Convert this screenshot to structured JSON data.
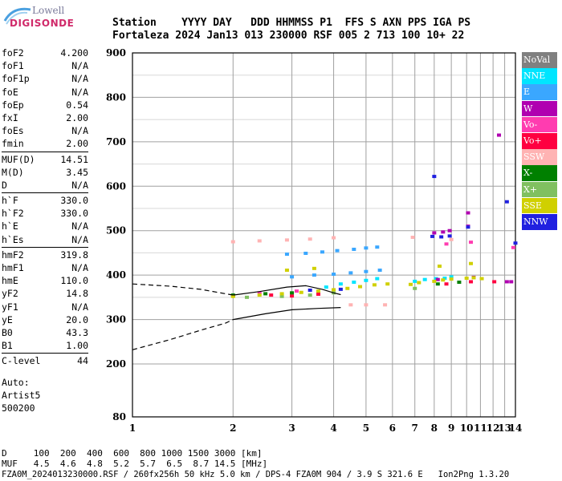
{
  "logo": {
    "top": "Lowell",
    "main": "DIGISONDE"
  },
  "header": {
    "line1": "Station    YYYY DAY   DDD HHMMSS P1  FFS S AXN PPS IGA PS",
    "line2": "Fortaleza 2024 Jan13 013 230000 RSF 005 2 713 100 10+ 22"
  },
  "params": [
    {
      "label": "foF2",
      "value": "4.200"
    },
    {
      "label": "foF1",
      "value": "N/A"
    },
    {
      "label": "foF1p",
      "value": "N/A"
    },
    {
      "label": "foE",
      "value": "N/A"
    },
    {
      "label": "foEp",
      "value": "0.54"
    },
    {
      "label": "fxI",
      "value": "2.00"
    },
    {
      "label": "foEs",
      "value": "N/A"
    },
    {
      "label": "fmin",
      "value": "2.00"
    },
    {
      "sep": true
    },
    {
      "label": "MUF(D)",
      "value": "14.51"
    },
    {
      "label": "M(D)",
      "value": "3.45"
    },
    {
      "label": "D",
      "value": "N/A"
    },
    {
      "sep": true
    },
    {
      "label": "h`F",
      "value": "330.0"
    },
    {
      "label": "h`F2",
      "value": "330.0"
    },
    {
      "label": "h`E",
      "value": "N/A"
    },
    {
      "label": "h`Es",
      "value": "N/A"
    },
    {
      "sep": true
    },
    {
      "label": "hmF2",
      "value": "319.8"
    },
    {
      "label": "hmF1",
      "value": "N/A"
    },
    {
      "label": "hmE",
      "value": "110.0"
    },
    {
      "label": "yF2",
      "value": "14.8"
    },
    {
      "label": "yF1",
      "value": "N/A"
    },
    {
      "label": "yE",
      "value": "20.0"
    },
    {
      "label": "B0",
      "value": "43.3"
    },
    {
      "label": "B1",
      "value": "1.00"
    },
    {
      "sep": true
    },
    {
      "label": "C-level",
      "value": "44"
    }
  ],
  "notes": [
    "Auto:",
    "Artist5",
    "500200"
  ],
  "bottom": {
    "d_row": "D     100  200  400  600  800 1000 1500 3000 [km]",
    "muf_row": "MUF   4.5  4.6  4.8  5.2  5.7  6.5  8.7 14.5 [MHz]",
    "info": "FZA0M_2024013230000.RSF / 260fx256h 50 kHz 5.0 km / DPS-4 FZA0M 904 / 3.9 S 321.6 E   Ion2Png 1.3.20"
  },
  "legend": [
    {
      "label": "NoVal",
      "bg": "#808080",
      "fg": "#ffffff"
    },
    {
      "label": "NNE",
      "bg": "#00e5ff",
      "fg": "#ffffff"
    },
    {
      "label": "E",
      "bg": "#3aa7ff",
      "fg": "#ffffff"
    },
    {
      "label": "W",
      "bg": "#b000b0",
      "fg": "#ffffff"
    },
    {
      "label": "Vo-",
      "bg": "#ff3cb0",
      "fg": "#ffffff"
    },
    {
      "label": "Vo+",
      "bg": "#ff0040",
      "fg": "#ffffff"
    },
    {
      "label": "SSW",
      "bg": "#ffb3b3",
      "fg": "#ffffff"
    },
    {
      "label": "X-",
      "bg": "#008000",
      "fg": "#ffffff"
    },
    {
      "label": "X+",
      "bg": "#80c060",
      "fg": "#ffffff"
    },
    {
      "label": "SSE",
      "bg": "#d0d000",
      "fg": "#ffffff"
    },
    {
      "label": "NNW",
      "bg": "#2020e0",
      "fg": "#ffffff"
    }
  ],
  "chart_data": {
    "type": "scatter",
    "title": "",
    "xlabel": "",
    "ylabel": "",
    "xlim": [
      1,
      14
    ],
    "ylim": [
      80,
      900
    ],
    "x_ticks": [
      1,
      2,
      3,
      4,
      5,
      6,
      7,
      8,
      9,
      10,
      11,
      12,
      13,
      14
    ],
    "y_ticks": [
      80,
      200,
      300,
      400,
      500,
      600,
      700,
      800,
      900
    ],
    "grid": true,
    "x_scale": "log",
    "note": "ionogram echo traces; x = frequency [MHz], y = virtual height [km]",
    "series": [
      {
        "name": "NNE",
        "color": "#00e5ff",
        "points": [
          [
            3.8,
            373
          ],
          [
            4.2,
            380
          ],
          [
            4.6,
            384
          ],
          [
            5.0,
            388
          ],
          [
            5.4,
            392
          ],
          [
            7.0,
            386
          ],
          [
            7.5,
            390
          ],
          [
            8.1,
            392
          ],
          [
            8.6,
            393
          ],
          [
            9.0,
            396
          ]
        ]
      },
      {
        "name": "E",
        "color": "#3aa7ff",
        "points": [
          [
            2.9,
            447
          ],
          [
            3.3,
            449
          ],
          [
            3.7,
            452
          ],
          [
            4.1,
            455
          ],
          [
            4.6,
            458
          ],
          [
            5.0,
            461
          ],
          [
            5.4,
            463
          ],
          [
            3.0,
            396
          ],
          [
            3.5,
            400
          ],
          [
            4.0,
            402
          ],
          [
            4.5,
            405
          ],
          [
            5.0,
            408
          ],
          [
            5.5,
            411
          ]
        ]
      },
      {
        "name": "W",
        "color": "#b000b0",
        "points": [
          [
            8.0,
            495
          ],
          [
            8.5,
            497
          ],
          [
            8.9,
            500
          ],
          [
            10.1,
            540
          ],
          [
            10.1,
            510
          ],
          [
            12.5,
            715
          ],
          [
            13.2,
            385
          ],
          [
            13.6,
            385
          ],
          [
            8.2,
            390
          ],
          [
            10.5,
            395
          ]
        ]
      },
      {
        "name": "Vo-",
        "color": "#ff3cb0",
        "points": [
          [
            2.4,
            360
          ],
          [
            3.1,
            364
          ],
          [
            13.8,
            462
          ],
          [
            10.3,
            474
          ],
          [
            8.7,
            470
          ]
        ]
      },
      {
        "name": "Vo+",
        "color": "#ff0040",
        "points": [
          [
            2.6,
            355
          ],
          [
            3.0,
            353
          ],
          [
            3.6,
            357
          ],
          [
            8.7,
            380
          ],
          [
            10.3,
            385
          ],
          [
            12.1,
            385
          ]
        ]
      },
      {
        "name": "SSW",
        "color": "#ffb3b3",
        "points": [
          [
            2.0,
            475
          ],
          [
            2.4,
            477
          ],
          [
            2.9,
            479
          ],
          [
            3.4,
            481
          ],
          [
            4.0,
            484
          ],
          [
            4.5,
            333
          ],
          [
            5.0,
            333
          ],
          [
            5.7,
            333
          ],
          [
            6.9,
            485
          ],
          [
            9.0,
            480
          ]
        ]
      },
      {
        "name": "X-",
        "color": "#008000",
        "points": [
          [
            2.0,
            355
          ],
          [
            2.5,
            358
          ],
          [
            3.0,
            360
          ],
          [
            8.2,
            380
          ],
          [
            9.5,
            384
          ]
        ]
      },
      {
        "name": "X+",
        "color": "#80c060",
        "points": [
          [
            2.2,
            350
          ],
          [
            2.8,
            352
          ],
          [
            3.4,
            355
          ],
          [
            4.0,
            360
          ],
          [
            7.0,
            370
          ]
        ]
      },
      {
        "name": "SSE",
        "color": "#d0d000",
        "points": [
          [
            2.0,
            352
          ],
          [
            2.4,
            355
          ],
          [
            2.8,
            358
          ],
          [
            3.2,
            361
          ],
          [
            3.6,
            364
          ],
          [
            4.0,
            367
          ],
          [
            4.4,
            370
          ],
          [
            4.8,
            374
          ],
          [
            5.3,
            378
          ],
          [
            5.8,
            380
          ],
          [
            6.8,
            379
          ],
          [
            7.2,
            383
          ],
          [
            8.0,
            386
          ],
          [
            8.5,
            389
          ],
          [
            9.0,
            391
          ],
          [
            10.0,
            393
          ],
          [
            10.5,
            394
          ],
          [
            11.1,
            392
          ],
          [
            2.9,
            411
          ],
          [
            3.5,
            415
          ],
          [
            8.3,
            420
          ],
          [
            10.3,
            426
          ]
        ]
      },
      {
        "name": "NNW",
        "color": "#2020e0",
        "points": [
          [
            8.0,
            622
          ],
          [
            13.2,
            565
          ],
          [
            14.0,
            472
          ],
          [
            7.9,
            487
          ],
          [
            8.4,
            486
          ],
          [
            8.9,
            488
          ],
          [
            10.1,
            508
          ],
          [
            3.4,
            366
          ],
          [
            4.2,
            368
          ]
        ]
      }
    ],
    "traces": [
      {
        "name": "trace_F2",
        "style": "solid",
        "points": [
          [
            2.0,
            355
          ],
          [
            2.4,
            363
          ],
          [
            2.9,
            373
          ],
          [
            3.3,
            376
          ],
          [
            3.7,
            368
          ],
          [
            4.0,
            360
          ],
          [
            4.2,
            356
          ]
        ]
      },
      {
        "name": "profile_Nh",
        "style": "solid",
        "points": [
          [
            2.0,
            300
          ],
          [
            2.5,
            313
          ],
          [
            3.0,
            322
          ],
          [
            3.6,
            325
          ],
          [
            4.2,
            327
          ]
        ]
      },
      {
        "name": "profile_extrap",
        "style": "dashed",
        "points": [
          [
            1.0,
            232
          ],
          [
            1.3,
            255
          ],
          [
            1.6,
            276
          ],
          [
            1.9,
            292
          ],
          [
            2.0,
            300
          ]
        ]
      },
      {
        "name": "trace_low_dashed",
        "style": "dashed",
        "points": [
          [
            1.0,
            380
          ],
          [
            1.3,
            375
          ],
          [
            1.6,
            368
          ],
          [
            2.0,
            355
          ]
        ]
      }
    ]
  }
}
